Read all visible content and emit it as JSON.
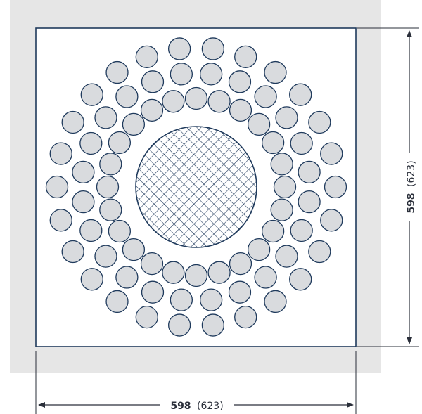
{
  "colors": {
    "frame_fill": "#e6e6e6",
    "panel_fill": "#ffffff",
    "outline": "#1f3a5c",
    "circle_fill": "#d9dbde",
    "hatch": "#1f3a5c",
    "dim_line": "#2a2f3a"
  },
  "dimensions": {
    "width": {
      "main": "598",
      "secondary": "(623)"
    },
    "height": {
      "main": "598",
      "secondary": "(623)"
    }
  },
  "holes": {
    "rings": [
      {
        "count": 24
      },
      {
        "count": 24
      },
      {
        "count": 26
      }
    ]
  },
  "center": {
    "pattern": "crosshatch-mesh"
  }
}
